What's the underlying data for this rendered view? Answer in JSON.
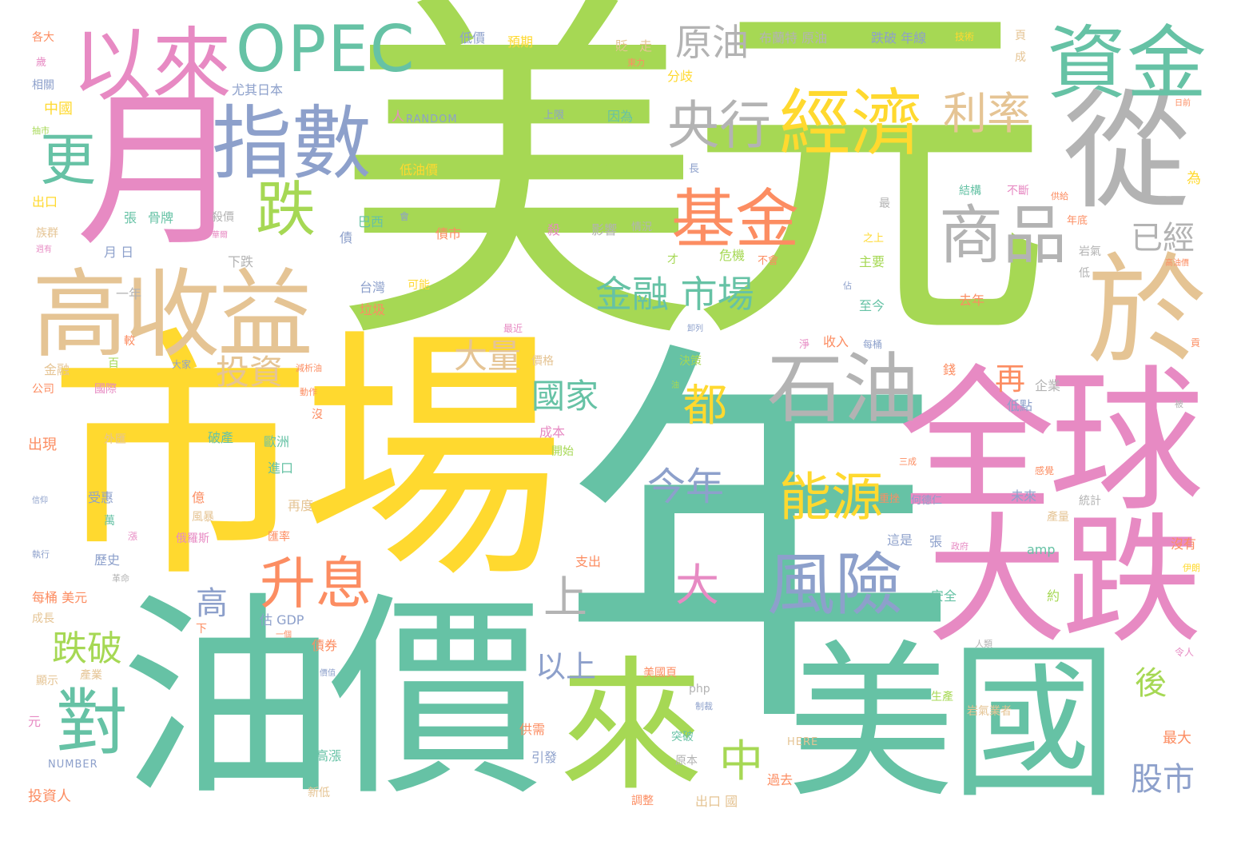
{
  "palette": {
    "green": "#66c2a5",
    "lime": "#a6d854",
    "yellow": "#ffd92f",
    "pink": "#e78ac3",
    "blue": "#8da0cb",
    "orange": "#fc8d62",
    "tan": "#e5c494",
    "gray": "#b3b3b3"
  },
  "words": {
    "meiyuan": "美元",
    "nian": "年",
    "shichang": "市場",
    "youjia": "油價",
    "yue": "月",
    "quanqiu": "全球",
    "meiguo": "美國",
    "lai": "來",
    "dadie": "大跌",
    "cong": "從",
    "yu": "於",
    "gaoshouyi": "高收益",
    "zijin": "資金",
    "opec": "OPEC",
    "yilai": "以來",
    "zhishu": "指數",
    "jingji": "經濟",
    "shiyou": "石油",
    "shangpin": "商品",
    "fengxian": "風險",
    "jijin": "基金",
    "yanghang": "央行",
    "die": "跌",
    "dui": "對",
    "geng": "更",
    "lilv": "利率",
    "shengxi": "升息",
    "nengyuan": "能源",
    "yuanyou": "原油",
    "jinrong_shichang": "金融 市場",
    "jinnian": "今年",
    "touzi": "投資",
    "dou": "都",
    "guojia": "國家",
    "dapie": "大量",
    "gao": "高",
    "zhong": "中",
    "shang": "上",
    "da": "大",
    "yijing": "已經",
    "zai": "再",
    "diepo": "跌破",
    "yishang": "以上",
    "hou": "後",
    "gushi": "股市",
    "small": [
      "布蘭特 原油",
      "跌破 年線",
      "技術",
      "低價",
      "預期",
      "貶",
      "走",
      "各大",
      "歲",
      "相關",
      "尤其日本",
      "中國",
      "抽市",
      "人",
      "RANDOM",
      "上限",
      "因為",
      "沙烏地 阿拉伯",
      "長",
      "低油價",
      "出口",
      "張",
      "骨牌",
      "殺價",
      "族群",
      "週有",
      "華爾",
      "月 日",
      "下跌",
      "一年",
      "巴西",
      "債市",
      "殺",
      "影響",
      "情況",
      "台灣",
      "可能",
      "垃圾",
      "最近",
      "較",
      "百",
      "大家",
      "減析油",
      "價格",
      "金融",
      "公司",
      "國際",
      "動作",
      "決策",
      "企業",
      "外匯",
      "破產",
      "歐洲",
      "出現",
      "進口",
      "成本",
      "開始",
      "受惠",
      "億",
      "再度",
      "風暴",
      "俄羅斯",
      "匯率",
      "萬",
      "漲",
      "歷史",
      "執行",
      "每桶 美元",
      "革命",
      "估 GDP",
      "成長",
      "下",
      "一個",
      "債券",
      "顯示",
      "產業",
      "元",
      "NUMBER",
      "投資人",
      "新低",
      "高漲",
      "引發",
      "供需",
      "原本",
      "突破",
      "出口 國",
      "調整",
      "過去",
      "HERE",
      "php",
      "制裁",
      "美國頁",
      "支出",
      "amp",
      "約",
      "安全",
      "這是",
      "張",
      "政府",
      "重挫",
      "何德仁",
      "未來",
      "產量",
      "統計",
      "沒有",
      "伊朗",
      "令人",
      "人類",
      "生產",
      "岩氣業者",
      "最大",
      "低點",
      "淨",
      "收入",
      "每桶",
      "錢",
      "至今",
      "主要",
      "之上",
      "去年",
      "危機",
      "不會",
      "岩氣",
      "高油價",
      "才",
      "最",
      "結構",
      "不斷",
      "供給",
      "為",
      "頁",
      "成",
      "日前",
      "分歧",
      "東力",
      "年底",
      "感覺",
      "三成",
      "貢",
      "被",
      "低",
      "佔",
      "債",
      "會",
      "信仰",
      "價值",
      "沒",
      "卸列",
      "油"
    ]
  }
}
